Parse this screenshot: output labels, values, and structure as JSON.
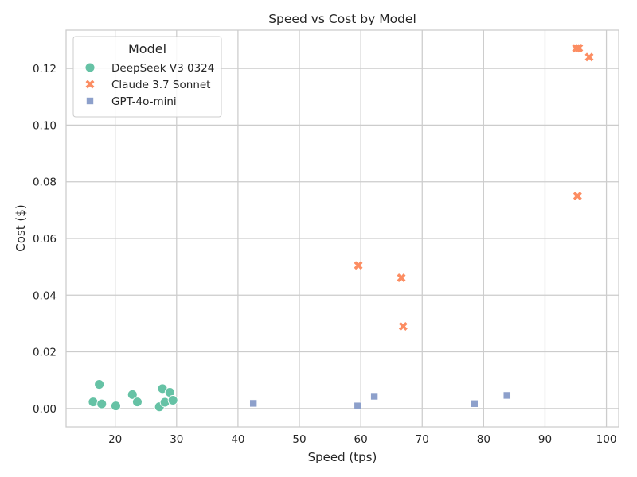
{
  "chart_data": {
    "type": "scatter",
    "title": "Speed vs Cost by Model",
    "xlabel": "Speed (tps)",
    "ylabel": "Cost ($)",
    "xlim": [
      12,
      102
    ],
    "ylim": [
      -0.0065,
      0.1335
    ],
    "xticks": [
      20,
      30,
      40,
      50,
      60,
      70,
      80,
      90,
      100
    ],
    "yticks": [
      0.0,
      0.02,
      0.04,
      0.06,
      0.08,
      0.1,
      0.12
    ],
    "ytick_labels": [
      "0.00",
      "0.02",
      "0.04",
      "0.06",
      "0.08",
      "0.10",
      "0.12"
    ],
    "grid": true,
    "legend": {
      "title": "Model",
      "placement": "top-left"
    },
    "series": [
      {
        "name": "DeepSeek V3 0324",
        "marker": "circle",
        "color": "#66c2a5",
        "points": [
          {
            "x": 16.4,
            "y": 0.0023
          },
          {
            "x": 17.4,
            "y": 0.0085
          },
          {
            "x": 17.8,
            "y": 0.0016
          },
          {
            "x": 20.1,
            "y": 0.0009
          },
          {
            "x": 22.8,
            "y": 0.0049
          },
          {
            "x": 23.6,
            "y": 0.0023
          },
          {
            "x": 27.2,
            "y": 0.0006
          },
          {
            "x": 27.7,
            "y": 0.007
          },
          {
            "x": 28.1,
            "y": 0.0022
          },
          {
            "x": 28.9,
            "y": 0.0057
          },
          {
            "x": 29.4,
            "y": 0.0029
          }
        ]
      },
      {
        "name": "Claude 3.7 Sonnet",
        "marker": "x",
        "color": "#fc8d62",
        "points": [
          {
            "x": 59.6,
            "y": 0.0505
          },
          {
            "x": 66.6,
            "y": 0.0461
          },
          {
            "x": 66.9,
            "y": 0.029
          },
          {
            "x": 95.1,
            "y": 0.1271
          },
          {
            "x": 95.5,
            "y": 0.1272
          },
          {
            "x": 95.3,
            "y": 0.075
          },
          {
            "x": 97.2,
            "y": 0.124
          }
        ]
      },
      {
        "name": "GPT-4o-mini",
        "marker": "square",
        "color": "#8da0cb",
        "points": [
          {
            "x": 42.5,
            "y": 0.0018
          },
          {
            "x": 59.5,
            "y": 0.0009
          },
          {
            "x": 62.2,
            "y": 0.0043
          },
          {
            "x": 78.5,
            "y": 0.0017
          },
          {
            "x": 83.8,
            "y": 0.0046
          }
        ]
      }
    ]
  }
}
